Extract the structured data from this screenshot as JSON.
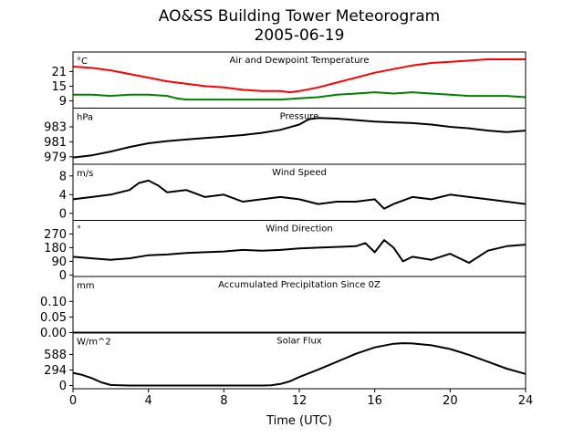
{
  "title": "AO&SS Building Tower Meteorogram",
  "subtitle": "2005-06-19",
  "xlabel": "Time (UTC)",
  "chart_data": {
    "type": "line",
    "x_ticks": [
      0,
      4,
      8,
      12,
      16,
      20,
      24
    ],
    "xlim": [
      0,
      24
    ],
    "panels": [
      {
        "id": "temp",
        "title": "Air and Dewpoint Temperature",
        "unit": "°C",
        "ylim": [
          6,
          29
        ],
        "yticks": [
          9,
          15,
          21
        ],
        "series": [
          {
            "color": "#ff0000",
            "x": [
              0,
              1,
              2,
              3,
              4,
              5,
              6,
              7,
              8,
              9,
              10,
              11,
              11.5,
              12,
              13,
              14,
              15,
              16,
              17,
              18,
              19,
              20,
              21,
              22,
              23,
              24
            ],
            "y": [
              23,
              22.5,
              21.5,
              20,
              18.5,
              17,
              16,
              15,
              14.5,
              13.5,
              13,
              13,
              12.5,
              13,
              14.5,
              16.5,
              18.5,
              20.5,
              22,
              23.5,
              24.5,
              25,
              25.5,
              26,
              26,
              26
            ]
          },
          {
            "color": "#008000",
            "x": [
              0,
              1,
              2,
              3,
              4,
              5,
              5.5,
              6,
              7,
              8,
              9,
              10,
              11,
              12,
              13,
              14,
              15,
              16,
              17,
              18,
              19,
              20,
              21,
              22,
              23,
              24
            ],
            "y": [
              11.5,
              11.5,
              11,
              11.5,
              11.5,
              11,
              10,
              9.5,
              9.5,
              9.5,
              9.5,
              9.5,
              9.5,
              10,
              10.5,
              11.5,
              12,
              12.5,
              12,
              12.5,
              12,
              11.5,
              11,
              11,
              11,
              10.5
            ]
          }
        ]
      },
      {
        "id": "pressure",
        "title": "Pressure",
        "unit": "hPa",
        "ylim": [
          978.0,
          985.5
        ],
        "yticks": [
          979,
          981,
          983
        ],
        "series": [
          {
            "color": "#000000",
            "x": [
              0,
              1,
              2,
              3,
              4,
              5,
              6,
              7,
              8,
              9,
              10,
              11,
              12,
              12.5,
              13,
              14,
              15,
              16,
              17,
              18,
              19,
              20,
              21,
              22,
              23,
              24
            ],
            "y": [
              978.9,
              979.2,
              979.7,
              980.3,
              980.8,
              981.1,
              981.3,
              981.5,
              981.7,
              981.9,
              982.2,
              982.6,
              983.3,
              984.0,
              984.2,
              984.1,
              983.9,
              983.7,
              983.6,
              983.5,
              983.3,
              983.0,
              982.8,
              982.5,
              982.3,
              982.5
            ]
          }
        ]
      },
      {
        "id": "wind-speed",
        "title": "Wind Speed",
        "unit": "m/s",
        "ylim": [
          -1.5,
          10.5
        ],
        "yticks": [
          0,
          4,
          8
        ],
        "series": [
          {
            "color": "#000000",
            "x": [
              0,
              1,
              2,
              3,
              3.5,
              4,
              4.5,
              5,
              6,
              7,
              8,
              9,
              10,
              11,
              12,
              13,
              14,
              15,
              16,
              16.5,
              17,
              18,
              19,
              20,
              21,
              22,
              23,
              24
            ],
            "y": [
              3,
              3.5,
              4,
              5,
              6.5,
              7,
              6,
              4.5,
              5,
              3.5,
              4,
              2.5,
              3,
              3.5,
              3,
              2,
              2.5,
              2.5,
              3,
              1,
              2,
              3.5,
              3,
              4,
              3.5,
              3,
              2.5,
              2
            ]
          }
        ]
      },
      {
        "id": "wind-direction",
        "title": "Wind Direction",
        "unit": "°",
        "ylim": [
          -10,
          360
        ],
        "yticks": [
          0,
          90,
          180,
          270
        ],
        "series": [
          {
            "color": "#000000",
            "x": [
              0,
              1,
              2,
              3,
              4,
              5,
              6,
              7,
              8,
              9,
              10,
              11,
              12,
              13,
              14,
              15,
              15.5,
              16,
              16.5,
              17,
              17.5,
              18,
              19,
              20,
              20.5,
              21,
              22,
              23,
              24
            ],
            "y": [
              120,
              110,
              100,
              110,
              130,
              135,
              145,
              150,
              155,
              165,
              160,
              165,
              175,
              180,
              185,
              190,
              210,
              150,
              230,
              180,
              90,
              120,
              100,
              140,
              110,
              80,
              160,
              190,
              200
            ]
          }
        ]
      },
      {
        "id": "precip",
        "title": "Accumulated Precipitation Since 0Z",
        "unit": "mm",
        "ylim": [
          0,
          0.18
        ],
        "yticks": [
          0.0,
          0.05,
          0.1
        ],
        "series": [
          {
            "color": "#000000",
            "x": [
              0,
              24
            ],
            "y": [
              0,
              0
            ]
          }
        ]
      },
      {
        "id": "solar",
        "title": "Solar Flux",
        "unit": "W/m^2",
        "ylim": [
          -60,
          1000
        ],
        "yticks": [
          0,
          294,
          588
        ],
        "series": [
          {
            "color": "#000000",
            "x": [
              0,
              0.5,
              1,
              1.5,
              2,
              3,
              4,
              6,
              8,
              10,
              10.5,
              11,
              11.5,
              12,
              13,
              14,
              15,
              16,
              17,
              17.5,
              18,
              19,
              20,
              21,
              22,
              23,
              24
            ],
            "y": [
              240,
              200,
              140,
              60,
              10,
              0,
              0,
              0,
              0,
              0,
              5,
              30,
              80,
              160,
              300,
              450,
              600,
              720,
              790,
              800,
              795,
              760,
              690,
              580,
              450,
              320,
              220
            ]
          }
        ]
      }
    ]
  }
}
